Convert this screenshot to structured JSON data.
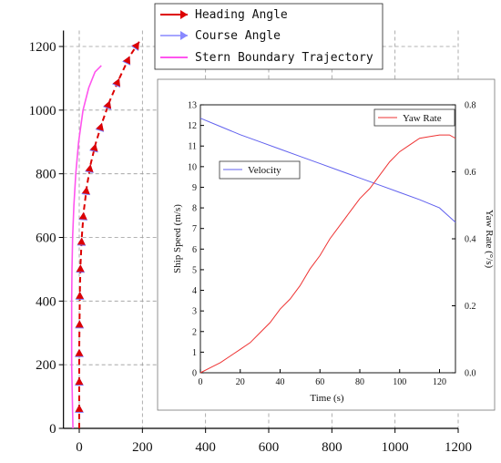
{
  "chart_data": [
    {
      "type": "line",
      "title": "",
      "xlabel": "",
      "ylabel": "",
      "xlim": [
        -50,
        1200
      ],
      "ylim": [
        0,
        1250
      ],
      "x_ticks": [
        "0",
        "200",
        "400",
        "600",
        "800",
        "1000",
        "1200"
      ],
      "y_ticks": [
        "0",
        "200",
        "400",
        "600",
        "800",
        "1000",
        "1200"
      ],
      "grid": "dashed",
      "legend_position": "top-left",
      "legend": {
        "heading": "Heading Angle",
        "course": "Course Angle",
        "stern": "Stern Boundary Trajectory"
      },
      "series": [
        {
          "name": "Heading Angle",
          "color": "#dd0000",
          "style": "dashed-arrows",
          "points": [
            [
              0,
              0
            ],
            [
              0,
              75
            ],
            [
              0,
              160
            ],
            [
              0,
              250
            ],
            [
              1,
              340
            ],
            [
              2,
              430
            ],
            [
              4,
              515
            ],
            [
              8,
              600
            ],
            [
              14,
              680
            ],
            [
              24,
              760
            ],
            [
              36,
              830
            ],
            [
              52,
              895
            ],
            [
              72,
              960
            ],
            [
              97,
              1030
            ],
            [
              127,
              1100
            ],
            [
              160,
              1170
            ],
            [
              190,
              1215
            ]
          ]
        },
        {
          "name": "Course Angle",
          "color": "#7777ff",
          "style": "arrow-markers",
          "points": [
            [
              0,
              75
            ],
            [
              0,
              160
            ],
            [
              0,
              250
            ],
            [
              1,
              340
            ],
            [
              2,
              430
            ],
            [
              4,
              515
            ],
            [
              8,
              600
            ],
            [
              14,
              680
            ],
            [
              24,
              760
            ],
            [
              36,
              830
            ],
            [
              52,
              895
            ],
            [
              72,
              960
            ],
            [
              97,
              1030
            ],
            [
              127,
              1100
            ],
            [
              160,
              1170
            ],
            [
              190,
              1215
            ]
          ]
        },
        {
          "name": "Stern Boundary Trajectory",
          "color": "#ff55ee",
          "style": "line",
          "points": [
            [
              -20,
              0
            ],
            [
              -22,
              100
            ],
            [
              -24,
              200
            ],
            [
              -24,
              300
            ],
            [
              -24,
              400
            ],
            [
              -23,
              500
            ],
            [
              -21,
              600
            ],
            [
              -17,
              700
            ],
            [
              -11,
              800
            ],
            [
              -2,
              900
            ],
            [
              12,
              1000
            ],
            [
              30,
              1070
            ],
            [
              50,
              1120
            ],
            [
              70,
              1140
            ]
          ]
        }
      ]
    },
    {
      "type": "line",
      "title": "",
      "xlabel": "Time (s)",
      "ylabel_left": "Ship Speed (m/s)",
      "ylabel_right": "Yaw Rate (°/s)",
      "xlim": [
        0,
        128
      ],
      "ylim_left": [
        0,
        13
      ],
      "ylim_right": [
        0,
        0.8
      ],
      "x_ticks": [
        "0",
        "20",
        "40",
        "60",
        "80",
        "100",
        "120"
      ],
      "y_left_ticks": [
        "0",
        "1",
        "2",
        "3",
        "4",
        "5",
        "6",
        "7",
        "8",
        "9",
        "10",
        "11",
        "12",
        "13"
      ],
      "y_right_ticks": [
        "0.0",
        "0.2",
        "0.4",
        "0.6",
        "0.8"
      ],
      "legend": {
        "velocity": "Velocity",
        "yaw": "Yaw Rate"
      },
      "series": [
        {
          "name": "Velocity",
          "axis": "left",
          "color": "#6060ee",
          "x": [
            0,
            10,
            20,
            30,
            40,
            50,
            60,
            70,
            80,
            90,
            100,
            110,
            120,
            128
          ],
          "values": [
            12.35,
            11.95,
            11.55,
            11.2,
            10.85,
            10.5,
            10.15,
            9.8,
            9.45,
            9.1,
            8.75,
            8.4,
            8.0,
            7.3
          ]
        },
        {
          "name": "Yaw Rate",
          "axis": "right",
          "color": "#ee3333",
          "x": [
            0,
            5,
            10,
            15,
            20,
            25,
            30,
            35,
            40,
            45,
            50,
            55,
            60,
            65,
            70,
            75,
            80,
            85,
            90,
            95,
            100,
            105,
            110,
            115,
            120,
            125,
            128
          ],
          "values": [
            0.0,
            0.015,
            0.03,
            0.05,
            0.07,
            0.09,
            0.12,
            0.15,
            0.19,
            0.22,
            0.26,
            0.31,
            0.35,
            0.4,
            0.44,
            0.48,
            0.52,
            0.55,
            0.59,
            0.63,
            0.66,
            0.68,
            0.7,
            0.705,
            0.71,
            0.71,
            0.7
          ]
        }
      ]
    }
  ]
}
